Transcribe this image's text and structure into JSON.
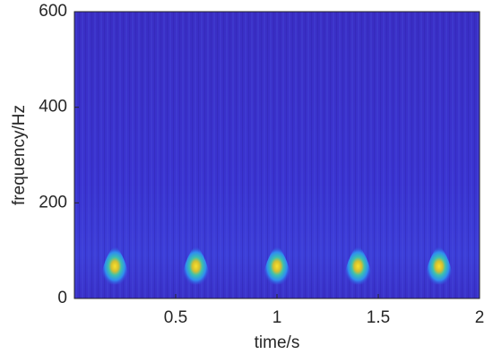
{
  "chart_data": {
    "type": "spectrogram",
    "xlabel": "time/s",
    "ylabel": "frequency/Hz",
    "xlim": [
      0,
      2
    ],
    "xticks": [
      0.5,
      1,
      1.5,
      2
    ],
    "ylim": [
      0,
      600
    ],
    "yticks": [
      0,
      200,
      400,
      600
    ],
    "peaks": {
      "x": [
        0.2,
        0.6,
        1.0,
        1.4,
        1.8
      ],
      "values": [
        65,
        65,
        65,
        65,
        65
      ]
    }
  }
}
